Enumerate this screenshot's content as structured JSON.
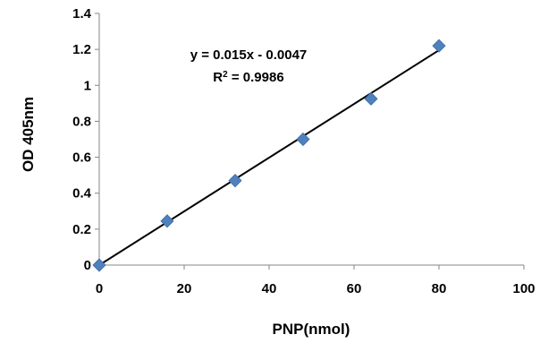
{
  "chart_data": {
    "type": "scatter",
    "xlabel": "PNP(nmol)",
    "ylabel": "OD 405nm",
    "xlim": [
      0,
      100
    ],
    "ylim": [
      0,
      1.4
    ],
    "xticks": [
      "0",
      "20",
      "40",
      "60",
      "80",
      "100"
    ],
    "yticks": [
      "0",
      "0.2",
      "0.4",
      "0.6",
      "0.8",
      "1",
      "1.2",
      "1.4"
    ],
    "grid": false,
    "legend": "none",
    "marker_color": "#4F81BD",
    "series": [
      {
        "x": [
          0,
          16,
          32,
          48,
          64,
          80
        ],
        "y": [
          0,
          0.245,
          0.47,
          0.7,
          0.925,
          1.22
        ]
      }
    ],
    "trendline": {
      "type": "linear",
      "slope": 0.015,
      "intercept": -0.0047,
      "x_range": [
        0,
        80
      ],
      "color": "#000000",
      "equation": "y = 0.015x - 0.0047",
      "r2_label": "R",
      "r2_exp": "2",
      "r2_value": " = 0.9986"
    }
  }
}
